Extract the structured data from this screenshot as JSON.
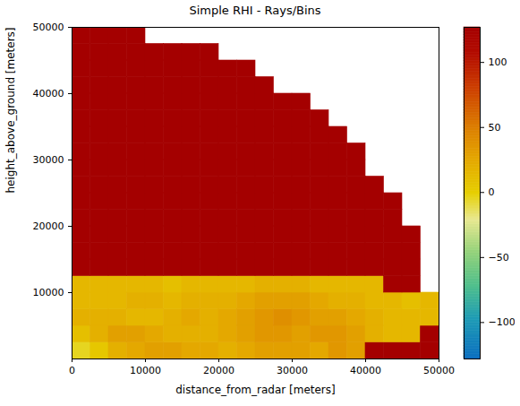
{
  "chart_data": {
    "type": "heatmap",
    "title": "Simple RHI - Rays/Bins",
    "x_label": "distance_from_radar [meters]",
    "y_label": "height_above_ground [meters]",
    "xlim": [
      0,
      50000
    ],
    "ylim": [
      0,
      50000
    ],
    "xticks": [
      0,
      10000,
      20000,
      30000,
      40000,
      50000
    ],
    "yticks": [
      10000,
      20000,
      30000,
      40000,
      50000
    ],
    "x_edges": [
      0,
      2500,
      5000,
      7500,
      10000,
      12500,
      15000,
      17500,
      20000,
      22500,
      25000,
      27500,
      30000,
      32500,
      35000,
      37500,
      40000,
      42500,
      45000,
      47500,
      50000
    ],
    "y_edges": [
      0,
      2500,
      5000,
      7500,
      10000,
      12500,
      15000,
      17500,
      20000,
      22500,
      25000,
      27500,
      30000,
      32500,
      35000,
      37500,
      40000,
      42500,
      45000,
      47500,
      50000
    ],
    "values": [
      [
        -5,
        5,
        20,
        25,
        30,
        30,
        25,
        25,
        20,
        25,
        30,
        30,
        30,
        25,
        35,
        30,
        127,
        127,
        127,
        127
      ],
      [
        10,
        20,
        30,
        30,
        25,
        20,
        20,
        20,
        25,
        30,
        35,
        35,
        30,
        35,
        35,
        30,
        20,
        15,
        15,
        127
      ],
      [
        20,
        20,
        20,
        15,
        15,
        20,
        25,
        20,
        25,
        30,
        35,
        40,
        35,
        30,
        30,
        25,
        20,
        15,
        15,
        15
      ],
      [
        15,
        15,
        15,
        20,
        20,
        15,
        20,
        20,
        20,
        25,
        30,
        30,
        30,
        25,
        20,
        20,
        15,
        15,
        10,
        15
      ],
      [
        15,
        15,
        15,
        15,
        15,
        10,
        15,
        15,
        15,
        15,
        20,
        20,
        20,
        15,
        15,
        15,
        15,
        127,
        127,
        null
      ],
      [
        127,
        127,
        127,
        127,
        127,
        127,
        127,
        127,
        127,
        127,
        127,
        127,
        127,
        127,
        127,
        127,
        127,
        127,
        127,
        null
      ],
      [
        127,
        127,
        127,
        127,
        127,
        127,
        127,
        127,
        127,
        127,
        127,
        127,
        127,
        127,
        127,
        127,
        127,
        127,
        127,
        null
      ],
      [
        127,
        127,
        127,
        127,
        127,
        127,
        127,
        127,
        127,
        127,
        127,
        127,
        127,
        127,
        127,
        127,
        127,
        127,
        127,
        null
      ],
      [
        127,
        127,
        127,
        127,
        127,
        127,
        127,
        127,
        127,
        127,
        127,
        127,
        127,
        127,
        127,
        127,
        127,
        127,
        null,
        null
      ],
      [
        127,
        127,
        127,
        127,
        127,
        127,
        127,
        127,
        127,
        127,
        127,
        127,
        127,
        127,
        127,
        127,
        127,
        127,
        null,
        null
      ],
      [
        127,
        127,
        127,
        127,
        127,
        127,
        127,
        127,
        127,
        127,
        127,
        127,
        127,
        127,
        127,
        127,
        127,
        null,
        null,
        null
      ],
      [
        127,
        127,
        127,
        127,
        127,
        127,
        127,
        127,
        127,
        127,
        127,
        127,
        127,
        127,
        127,
        127,
        null,
        null,
        null,
        null
      ],
      [
        127,
        127,
        127,
        127,
        127,
        127,
        127,
        127,
        127,
        127,
        127,
        127,
        127,
        127,
        127,
        127,
        null,
        null,
        null,
        null
      ],
      [
        127,
        127,
        127,
        127,
        127,
        127,
        127,
        127,
        127,
        127,
        127,
        127,
        127,
        127,
        127,
        null,
        null,
        null,
        null,
        null
      ],
      [
        127,
        127,
        127,
        127,
        127,
        127,
        127,
        127,
        127,
        127,
        127,
        127,
        127,
        127,
        null,
        null,
        null,
        null,
        null,
        null
      ],
      [
        127,
        127,
        127,
        127,
        127,
        127,
        127,
        127,
        127,
        127,
        127,
        127,
        127,
        null,
        null,
        null,
        null,
        null,
        null,
        null
      ],
      [
        127,
        127,
        127,
        127,
        127,
        127,
        127,
        127,
        127,
        127,
        127,
        null,
        null,
        null,
        null,
        null,
        null,
        null,
        null,
        null
      ],
      [
        127,
        127,
        127,
        127,
        127,
        127,
        127,
        127,
        127,
        127,
        null,
        null,
        null,
        null,
        null,
        null,
        null,
        null,
        null,
        null
      ],
      [
        127,
        127,
        127,
        127,
        127,
        127,
        127,
        127,
        null,
        null,
        null,
        null,
        null,
        null,
        null,
        null,
        null,
        null,
        null,
        null
      ],
      [
        127,
        127,
        127,
        127,
        null,
        null,
        null,
        null,
        null,
        null,
        null,
        null,
        null,
        null,
        null,
        null,
        null,
        null,
        null,
        null
      ]
    ],
    "colorbar": {
      "lim": [
        -128,
        127
      ],
      "ticks": [
        {
          "value": -100,
          "label": "−100"
        },
        {
          "value": -50,
          "label": "−50"
        },
        0,
        50,
        100
      ]
    }
  }
}
